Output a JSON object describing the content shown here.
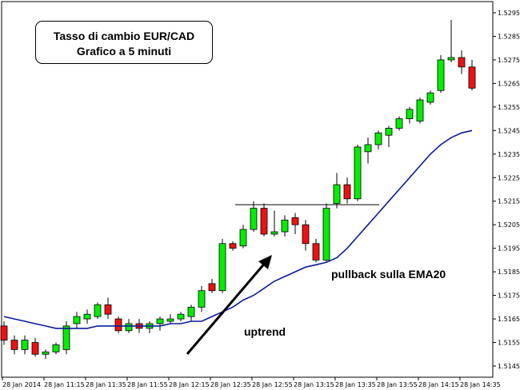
{
  "chart_data": {
    "type": "candlestick",
    "title": "Tasso di cambio EUR/CAD",
    "subtitle": "Grafico a 5 minuti",
    "ylim": [
      1.514,
      1.53
    ],
    "y_ticks": [
      "1.5145",
      "1.5155",
      "1.5165",
      "1.5175",
      "1.5185",
      "1.5195",
      "1.5205",
      "1.5215",
      "1.5225",
      "1.5235",
      "1.5245",
      "1.5255",
      "1.5265",
      "1.5275",
      "1.5285",
      "1.5295"
    ],
    "x_tick_labels": [
      "28 Jan 2014",
      "28 Jan 11:15",
      "28 Jan 11:35",
      "28 Jan 11:55",
      "28 Jan 12:15",
      "28 Jan 12:35",
      "28 Jan 12:55",
      "28 Jan 13:15",
      "28 Jan 13:35",
      "28 Jan 13:55",
      "28 Jan 14:15",
      "28 Jan 14:35"
    ],
    "candles": [
      {
        "o": 1.5162,
        "h": 1.5164,
        "l": 1.5154,
        "c": 1.5156
      },
      {
        "o": 1.5156,
        "h": 1.5158,
        "l": 1.515,
        "c": 1.5152
      },
      {
        "o": 1.5152,
        "h": 1.5158,
        "l": 1.515,
        "c": 1.5156
      },
      {
        "o": 1.5155,
        "h": 1.5157,
        "l": 1.5149,
        "c": 1.515
      },
      {
        "o": 1.515,
        "h": 1.5152,
        "l": 1.5148,
        "c": 1.5151
      },
      {
        "o": 1.5151,
        "h": 1.5155,
        "l": 1.515,
        "c": 1.5154
      },
      {
        "o": 1.5152,
        "h": 1.5164,
        "l": 1.515,
        "c": 1.5162
      },
      {
        "o": 1.5163,
        "h": 1.5168,
        "l": 1.5161,
        "c": 1.5166
      },
      {
        "o": 1.5165,
        "h": 1.5169,
        "l": 1.5163,
        "c": 1.5167
      },
      {
        "o": 1.5166,
        "h": 1.5172,
        "l": 1.5165,
        "c": 1.5171
      },
      {
        "o": 1.5171,
        "h": 1.5174,
        "l": 1.5165,
        "c": 1.5167
      },
      {
        "o": 1.5165,
        "h": 1.5166,
        "l": 1.5159,
        "c": 1.516
      },
      {
        "o": 1.516,
        "h": 1.5165,
        "l": 1.5159,
        "c": 1.5163
      },
      {
        "o": 1.5163,
        "h": 1.5165,
        "l": 1.5159,
        "c": 1.5161
      },
      {
        "o": 1.5161,
        "h": 1.5164,
        "l": 1.5159,
        "c": 1.5163
      },
      {
        "o": 1.5163,
        "h": 1.5166,
        "l": 1.516,
        "c": 1.5165
      },
      {
        "o": 1.5164,
        "h": 1.5167,
        "l": 1.5163,
        "c": 1.5165
      },
      {
        "o": 1.5165,
        "h": 1.5168,
        "l": 1.5164,
        "c": 1.5167
      },
      {
        "o": 1.5166,
        "h": 1.5171,
        "l": 1.5164,
        "c": 1.517
      },
      {
        "o": 1.517,
        "h": 1.5179,
        "l": 1.5168,
        "c": 1.5177
      },
      {
        "o": 1.518,
        "h": 1.5182,
        "l": 1.5176,
        "c": 1.5177
      },
      {
        "o": 1.5177,
        "h": 1.5199,
        "l": 1.5176,
        "c": 1.5197
      },
      {
        "o": 1.5197,
        "h": 1.5198,
        "l": 1.5194,
        "c": 1.5195
      },
      {
        "o": 1.5196,
        "h": 1.5205,
        "l": 1.5195,
        "c": 1.5203
      },
      {
        "o": 1.5203,
        "h": 1.5215,
        "l": 1.5202,
        "c": 1.5212
      },
      {
        "o": 1.5212,
        "h": 1.5214,
        "l": 1.52,
        "c": 1.5201
      },
      {
        "o": 1.5201,
        "h": 1.5211,
        "l": 1.52,
        "c": 1.5202
      },
      {
        "o": 1.5202,
        "h": 1.5209,
        "l": 1.52,
        "c": 1.5207
      },
      {
        "o": 1.5208,
        "h": 1.521,
        "l": 1.5201,
        "c": 1.5205
      },
      {
        "o": 1.5205,
        "h": 1.5207,
        "l": 1.5194,
        "c": 1.5197
      },
      {
        "o": 1.5197,
        "h": 1.5199,
        "l": 1.5189,
        "c": 1.519
      },
      {
        "o": 1.519,
        "h": 1.5214,
        "l": 1.5189,
        "c": 1.5212
      },
      {
        "o": 1.5214,
        "h": 1.5227,
        "l": 1.5212,
        "c": 1.5222
      },
      {
        "o": 1.5222,
        "h": 1.5225,
        "l": 1.5214,
        "c": 1.5216
      },
      {
        "o": 1.5216,
        "h": 1.5239,
        "l": 1.5215,
        "c": 1.5238
      },
      {
        "o": 1.5236,
        "h": 1.5242,
        "l": 1.5231,
        "c": 1.5239
      },
      {
        "o": 1.5239,
        "h": 1.5245,
        "l": 1.5237,
        "c": 1.5244
      },
      {
        "o": 1.5243,
        "h": 1.5247,
        "l": 1.5238,
        "c": 1.5246
      },
      {
        "o": 1.5246,
        "h": 1.5251,
        "l": 1.5245,
        "c": 1.525
      },
      {
        "o": 1.525,
        "h": 1.5255,
        "l": 1.5248,
        "c": 1.5254
      },
      {
        "o": 1.5249,
        "h": 1.5259,
        "l": 1.5248,
        "c": 1.5258
      },
      {
        "o": 1.5257,
        "h": 1.5262,
        "l": 1.5256,
        "c": 1.5261
      },
      {
        "o": 1.5262,
        "h": 1.5277,
        "l": 1.5261,
        "c": 1.5275
      },
      {
        "o": 1.5275,
        "h": 1.5292,
        "l": 1.5274,
        "c": 1.5276
      },
      {
        "o": 1.5276,
        "h": 1.5279,
        "l": 1.5269,
        "c": 1.5272
      },
      {
        "o": 1.5272,
        "h": 1.5275,
        "l": 1.5262,
        "c": 1.5263
      }
    ],
    "ema20": [
      1.5166,
      1.5165,
      1.5164,
      1.5163,
      1.5162,
      1.5161,
      1.5161,
      1.5161,
      1.5161,
      1.5162,
      1.5162,
      1.5162,
      1.5162,
      1.5162,
      1.5162,
      1.5162,
      1.5163,
      1.5163,
      1.5164,
      1.5164,
      1.5166,
      1.5168,
      1.517,
      1.5173,
      1.5175,
      1.5178,
      1.5181,
      1.5183,
      1.5185,
      1.5187,
      1.5188,
      1.5189,
      1.5191,
      1.5195,
      1.52,
      1.5205,
      1.521,
      1.5215,
      1.522,
      1.5225,
      1.523,
      1.5235,
      1.5239,
      1.5242,
      1.5244,
      1.5245
    ],
    "resistance_level": 1.52135,
    "annotations": {
      "uptrend": "uptrend",
      "pullback": "pullback sulla EMA20"
    },
    "colors": {
      "bull": "#00ee00",
      "bear": "#ee1111",
      "ema": "#0a1a99",
      "candle_outline": "#000000"
    }
  }
}
